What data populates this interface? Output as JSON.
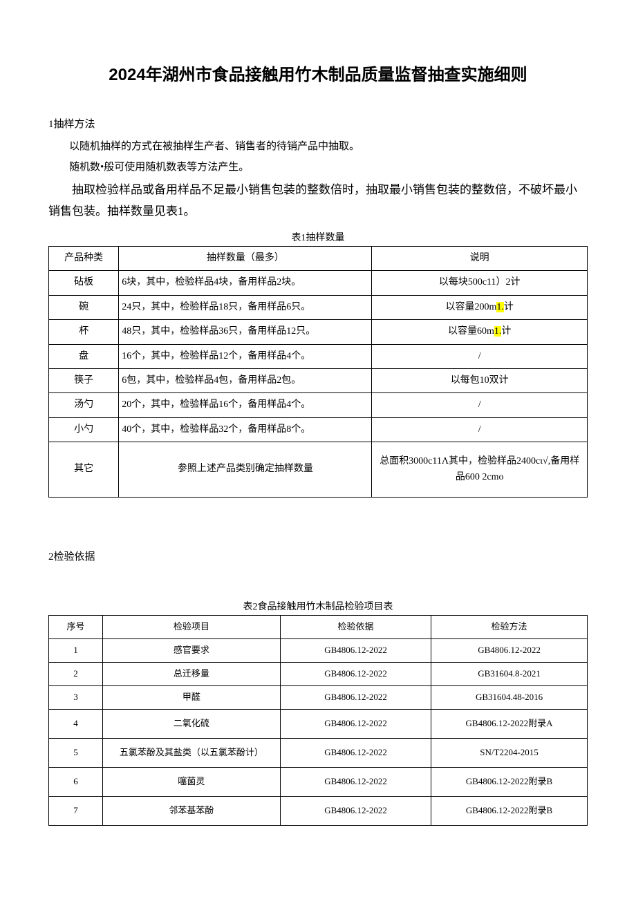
{
  "title": "2024年湖州市食品接触用竹木制品质量监督抽查实施细则",
  "section1": {
    "heading": "1抽样方法",
    "p1": "以随机抽样的方式在被抽样生产者、销售者的待销产品中抽取。",
    "p2": "随机数•般可使用随机数表等方法产生。",
    "p3": "抽取检验样品或备用样品不足最小销售包装的整数倍时，抽取最小销售包装的整数倍，不破坏最小销售包装。抽样数量见表1。"
  },
  "table1": {
    "caption": "表1抽样数量",
    "headers": {
      "c1": "产品种类",
      "c2": "抽样数量（最多）",
      "c3": "说明"
    },
    "rows": [
      {
        "c1": "砧板",
        "c2": "6块，其中，检验样品4块，备用样品2块。",
        "c3_pre": "以每块500c11）2计",
        "c3_hl": "",
        "c3_post": ""
      },
      {
        "c1": "碗",
        "c2": "24只，其中，检验样品18只，备用样品6只。",
        "c3_pre": "以容量200m",
        "c3_hl": "1.",
        "c3_post": "计"
      },
      {
        "c1": "杯",
        "c2": "48只，其中，检验样品36只，备用样品12只。",
        "c3_pre": "以容量60m",
        "c3_hl": "1.",
        "c3_post": "计"
      },
      {
        "c1": "盘",
        "c2": "16个，其中，检验样品12个，备用样品4个。",
        "c3_pre": "/",
        "c3_hl": "",
        "c3_post": ""
      },
      {
        "c1": "筷子",
        "c2": "6包，其中，检验样品4包，备用样品2包。",
        "c3_pre": "以每包10双计",
        "c3_hl": "",
        "c3_post": ""
      },
      {
        "c1": "汤勺",
        "c2": "20个，其中，检验样品16个，备用样品4个。",
        "c3_pre": "/",
        "c3_hl": "",
        "c3_post": ""
      },
      {
        "c1": "小勺",
        "c2": "40个，其中，检验样品32个，备用样品8个。",
        "c3_pre": "/",
        "c3_hl": "",
        "c3_post": ""
      },
      {
        "c1": "其它",
        "c2": "参照上述产品类别确定抽样数量",
        "c3_pre": "总面积3000c11Λ其中，检验样品2400cι√,备用样品600 2cmo",
        "c3_hl": "",
        "c3_post": ""
      }
    ]
  },
  "section2": {
    "heading": "2检验依据"
  },
  "table2": {
    "caption": "表2食品接触用竹木制品检验项目表",
    "headers": {
      "c1": "序号",
      "c2": "检验项目",
      "c3": "检验依据",
      "c4": "检验方法"
    },
    "rows": [
      {
        "c1": "1",
        "c2": "感官要求",
        "c3": "GB4806.12-2022",
        "c4": "GB4806.12-2022"
      },
      {
        "c1": "2",
        "c2": "总迁移量",
        "c3": "GB4806.12-2022",
        "c4": "GB31604.8-2021"
      },
      {
        "c1": "3",
        "c2": "甲醛",
        "c3": "GB4806.12-2022",
        "c4": "GB31604.48-2016"
      },
      {
        "c1": "4",
        "c2": "二氧化硫",
        "c3": "GB4806.12-2022",
        "c4": "GB4806.12-2022附录A"
      },
      {
        "c1": "5",
        "c2": "五氯苯酚及其盐类（以五氯苯酚计）",
        "c3": "GB4806.12-2022",
        "c4": "SN/T2204-2015"
      },
      {
        "c1": "6",
        "c2": "噻菌灵",
        "c3": "GB4806.12-2022",
        "c4": "GB4806.12-2022附录B"
      },
      {
        "c1": "7",
        "c2": "邻苯基苯酚",
        "c3": "GB4806.12-2022",
        "c4": "GB4806.12-2022附录B"
      }
    ]
  },
  "layout": {
    "table1_widths": [
      "13%",
      "47%",
      "40%"
    ],
    "table2_widths": [
      "10%",
      "33%",
      "28%",
      "29%"
    ]
  }
}
